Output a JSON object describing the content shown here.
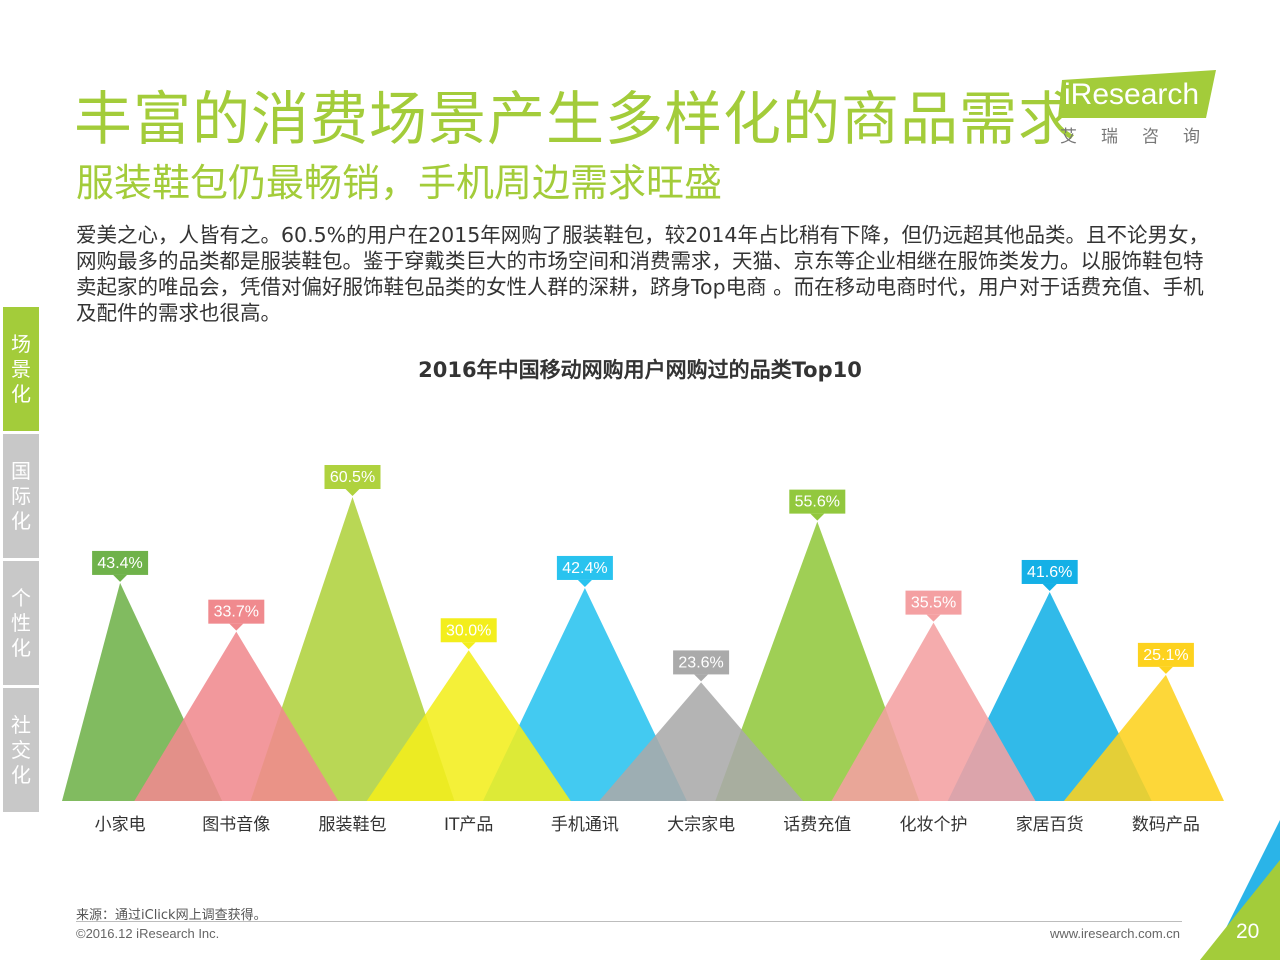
{
  "header": {
    "title": "丰富的消费场景产生多样化的商品需求",
    "subtitle": "服装鞋包仍最畅销，手机周边需求旺盛"
  },
  "logo": {
    "text": "iResearch",
    "sub": "艾瑞咨询"
  },
  "intro": "爱美之心，人皆有之。60.5%的用户在2015年网购了服装鞋包，较2014年占比稍有下降，但仍远超其他品类。且不论男女，网购最多的品类都是服装鞋包。鉴于穿戴类巨大的市场空间和消费需求，天猫、京东等企业相继在服饰类发力。以服饰鞋包特卖起家的唯品会，凭借对偏好服饰鞋包品类的女性人群的深耕，跻身Top电商 。而在移动电商时代，用户对于话费充值、手机及配件的需求也很高。",
  "side_tabs": [
    {
      "label": "场景化",
      "active": true
    },
    {
      "label": "国际化",
      "active": false
    },
    {
      "label": "个性化",
      "active": false
    },
    {
      "label": "社交化",
      "active": false
    }
  ],
  "chart_data": {
    "type": "bar",
    "title": "2016年中国移动网购用户网购过的品类Top10",
    "categories": [
      "小家电",
      "图书音像",
      "服装鞋包",
      "IT产品",
      "手机通讯",
      "大宗家电",
      "话费充值",
      "化妆个护",
      "家居百货",
      "数码产品"
    ],
    "values": [
      43.4,
      33.7,
      60.5,
      30.0,
      42.4,
      23.6,
      55.6,
      35.5,
      41.6,
      25.1
    ],
    "labels": [
      "43.4%",
      "33.7%",
      "60.5%",
      "30.0%",
      "42.4%",
      "23.6%",
      "55.6%",
      "35.5%",
      "41.6%",
      "25.1%"
    ],
    "colors": [
      "#6fb24a",
      "#f08a8e",
      "#afd23e",
      "#f3ee1c",
      "#29c3ef",
      "#aaaaaa",
      "#92c83e",
      "#f4a0a2",
      "#14b0e6",
      "#fdd21e"
    ],
    "ylim": [
      0,
      60.5
    ],
    "grid": false,
    "legend": "none"
  },
  "footer": {
    "source": "来源：通过iClick网上调查获得。",
    "copyright": "©2016.12 iResearch Inc.",
    "url": "www.iresearch.com.cn",
    "page": "20"
  }
}
